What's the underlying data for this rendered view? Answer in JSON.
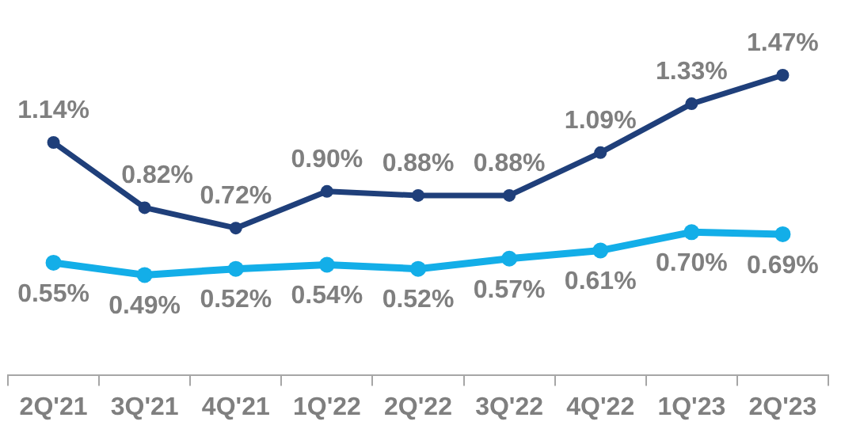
{
  "chart_data": {
    "type": "line",
    "categories": [
      "2Q'21",
      "3Q'21",
      "4Q'21",
      "1Q'22",
      "2Q'22",
      "3Q'22",
      "4Q'22",
      "1Q'23",
      "2Q'23"
    ],
    "series": [
      {
        "color": "#1f3f7a",
        "values": [
          1.14,
          0.82,
          0.72,
          0.9,
          0.88,
          0.88,
          1.09,
          1.33,
          1.47
        ],
        "value_labels": [
          "1.14%",
          "0.82%",
          "0.72%",
          "0.90%",
          "0.88%",
          "0.88%",
          "1.09%",
          "1.33%",
          "1.47%"
        ]
      },
      {
        "color": "#13aee8",
        "values": [
          0.55,
          0.49,
          0.52,
          0.54,
          0.52,
          0.57,
          0.61,
          0.7,
          0.69
        ],
        "value_labels": [
          "0.55%",
          "0.49%",
          "0.52%",
          "0.54%",
          "0.52%",
          "0.57%",
          "0.61%",
          "0.70%",
          "0.69%"
        ]
      }
    ],
    "tick_labels": "x",
    "grid": false,
    "legend": false,
    "marker": "circle",
    "line_style": "solid"
  }
}
